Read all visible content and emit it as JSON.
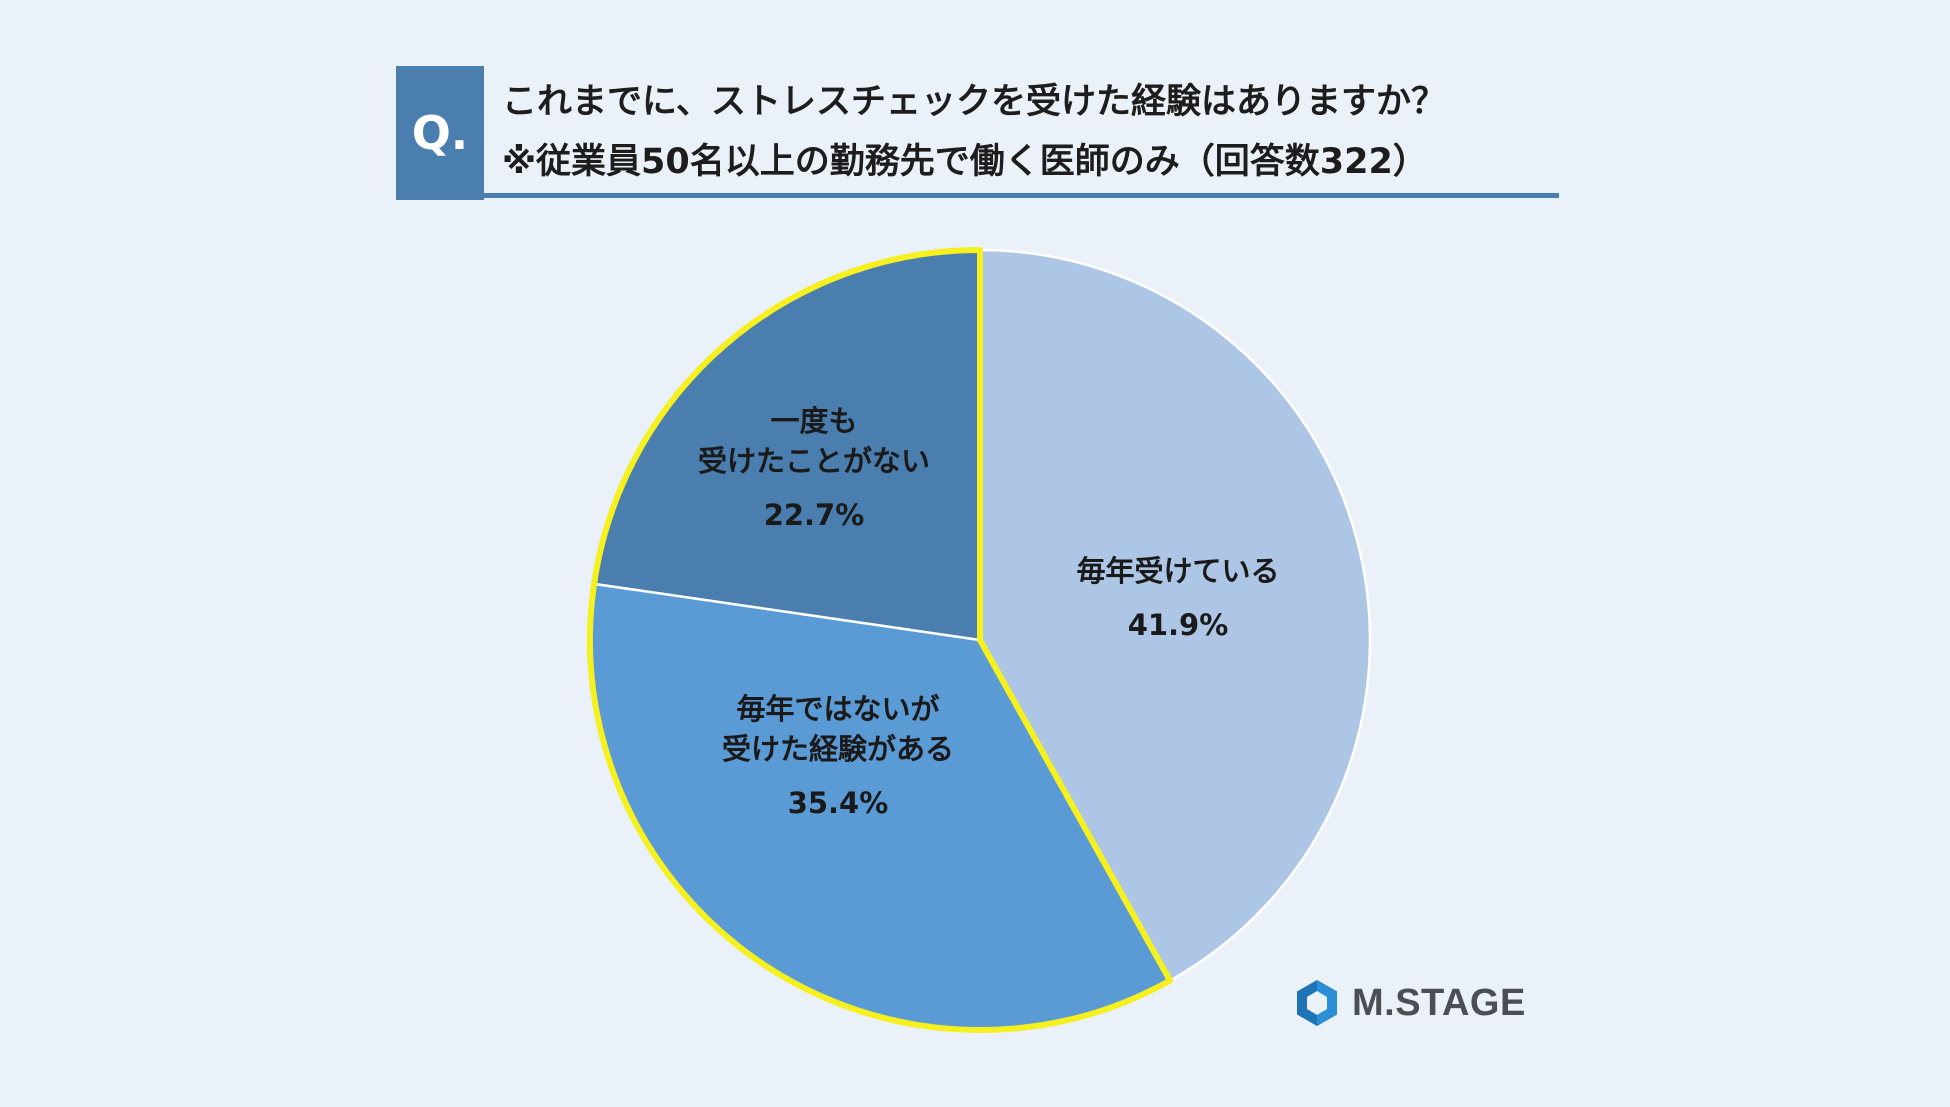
{
  "header": {
    "q_mark": "Q.",
    "line1": "これまでに、ストレスチェックを受けた経験はありますか？",
    "line2": "※従業員50名以上の勤務先で働く医師のみ（回答数322）"
  },
  "colors": {
    "background": "#EAF1F9",
    "accent": "#4A7EAE",
    "highlight_border": "#F5F01E"
  },
  "chart_data": {
    "type": "pie",
    "start_angle_deg": 0,
    "direction": "clockwise",
    "slices": [
      {
        "label_lines": [
          "毎年受けている"
        ],
        "value": 41.9,
        "display": "41.9%",
        "color": "#ADC6E5"
      },
      {
        "label_lines": [
          "毎年ではないが",
          "受けた経験がある"
        ],
        "value": 35.4,
        "display": "35.4%",
        "color": "#5B9BD5"
      },
      {
        "label_lines": [
          "一度も",
          "受けたことがない"
        ],
        "value": 22.7,
        "display": "22.7%",
        "color": "#4A7EAE"
      }
    ]
  },
  "logo": {
    "text": "M.STAGE",
    "icon": "hexagon-logo-icon"
  }
}
